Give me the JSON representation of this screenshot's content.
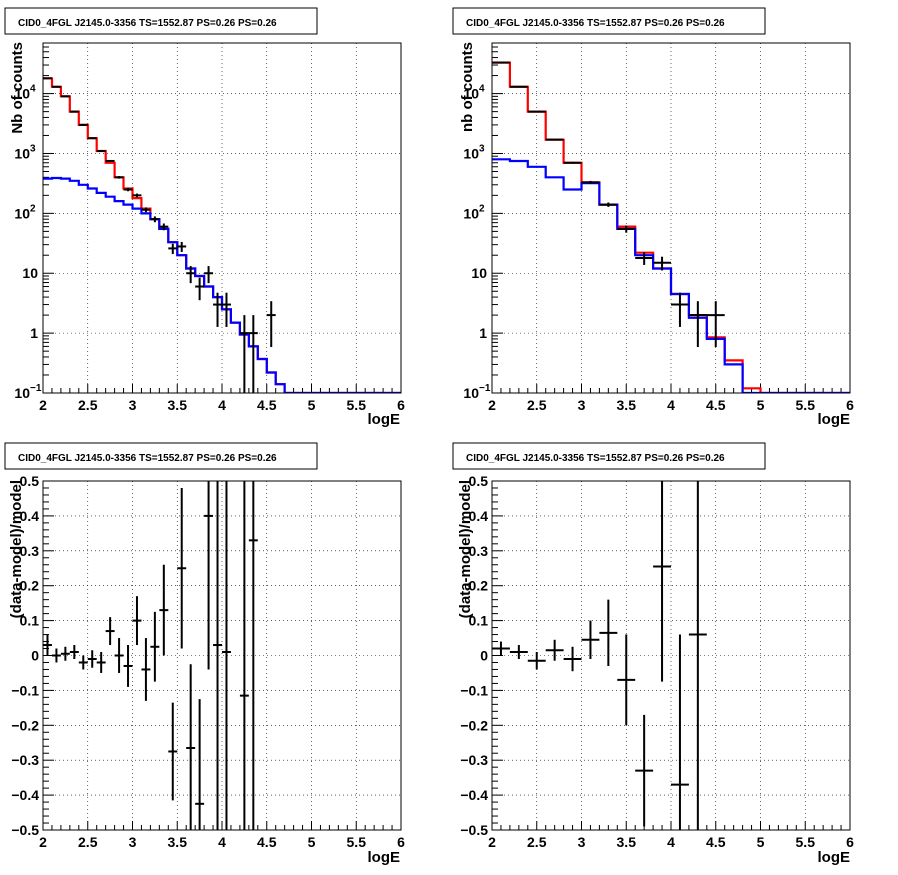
{
  "panels": [
    {
      "title": "CID0_4FGL J2145.0-3356 TS=1552.87 PS=0.26 PS=0.26",
      "chart_data": {
        "type": "line",
        "xlabel": "logE",
        "ylabel": "Nb of counts",
        "xlim": [
          2,
          6
        ],
        "ylim": [
          0.1,
          70000
        ],
        "yscale": "log",
        "grid": true,
        "xticks": [
          "2",
          "2.5",
          "3",
          "3.5",
          "4",
          "4.5",
          "5",
          "5.5",
          "6"
        ],
        "yticks": [
          {
            "v": 0.1,
            "mant": "10",
            "exp": "−1"
          },
          {
            "v": 1,
            "mant": "1",
            "exp": ""
          },
          {
            "v": 10,
            "mant": "10",
            "exp": ""
          },
          {
            "v": 100,
            "mant": "10",
            "exp": "2"
          },
          {
            "v": 1000,
            "mant": "10",
            "exp": "3"
          },
          {
            "v": 10000,
            "mant": "10",
            "exp": "4"
          }
        ],
        "binwidth": 0.1,
        "series": [
          {
            "color": "#ff0000",
            "x0": 2.0,
            "values": [
              18000,
              13000,
              9000,
              5000,
              3000,
              1800,
              1100,
              700,
              400,
              260,
              180,
              120,
              80,
              55,
              33,
              20,
              12,
              9,
              6,
              4,
              2.5,
              1.5,
              0.95,
              0.6,
              0.37,
              0.22,
              0.14,
              0.1,
              0.1,
              0.1,
              0.1,
              0.1,
              0.1,
              0.1,
              0.1,
              0.1,
              0.1,
              0.1,
              0.1,
              0.1
            ]
          },
          {
            "color": "#0000ff",
            "x0": 2.0,
            "values": [
              380,
              390,
              380,
              350,
              300,
              260,
              220,
              190,
              160,
              140,
              120,
              100,
              80,
              55,
              33,
              20,
              12,
              9,
              6,
              4,
              2.5,
              1.5,
              0.95,
              0.6,
              0.37,
              0.22,
              0.14,
              0.1,
              0.1,
              0.1,
              0.1,
              0.1,
              0.1,
              0.1,
              0.1,
              0.1,
              0.1,
              0.1,
              0.1,
              0.1
            ]
          }
        ],
        "points": [
          {
            "x": 2.05,
            "y": 18000
          },
          {
            "x": 2.15,
            "y": 13000
          },
          {
            "x": 2.25,
            "y": 9000
          },
          {
            "x": 2.35,
            "y": 5000
          },
          {
            "x": 2.45,
            "y": 3000
          },
          {
            "x": 2.55,
            "y": 1800
          },
          {
            "x": 2.65,
            "y": 1100
          },
          {
            "x": 2.75,
            "y": 750
          },
          {
            "x": 2.85,
            "y": 400
          },
          {
            "x": 2.95,
            "y": 250
          },
          {
            "x": 3.05,
            "y": 200
          },
          {
            "x": 3.15,
            "y": 115
          },
          {
            "x": 3.25,
            "y": 80
          },
          {
            "x": 3.35,
            "y": 60
          },
          {
            "x": 3.45,
            "y": 26
          },
          {
            "x": 3.55,
            "y": 28
          },
          {
            "x": 3.65,
            "y": 10
          },
          {
            "x": 3.75,
            "y": 6
          },
          {
            "x": 3.85,
            "y": 10
          },
          {
            "x": 3.95,
            "y": 3
          },
          {
            "x": 4.05,
            "y": 3
          },
          {
            "x": 4.25,
            "y": 1
          },
          {
            "x": 4.35,
            "y": 1
          },
          {
            "x": 4.55,
            "y": 2
          }
        ]
      }
    },
    {
      "title": "CID0_4FGL J2145.0-3356 TS=1552.87 PS=0.26 PS=0.26",
      "chart_data": {
        "type": "line",
        "xlabel": "logE",
        "ylabel": "nb of counts",
        "xlim": [
          2,
          6
        ],
        "ylim": [
          0.1,
          70000
        ],
        "yscale": "log",
        "grid": true,
        "xticks": [
          "2",
          "2.5",
          "3",
          "3.5",
          "4",
          "4.5",
          "5",
          "5.5",
          "6"
        ],
        "yticks": [
          {
            "v": 0.1,
            "mant": "10",
            "exp": "−1"
          },
          {
            "v": 1,
            "mant": "1",
            "exp": ""
          },
          {
            "v": 10,
            "mant": "10",
            "exp": ""
          },
          {
            "v": 100,
            "mant": "10",
            "exp": "2"
          },
          {
            "v": 1000,
            "mant": "10",
            "exp": "3"
          },
          {
            "v": 10000,
            "mant": "10",
            "exp": "4"
          }
        ],
        "binwidth": 0.2,
        "series": [
          {
            "color": "#ff0000",
            "x0": 2.0,
            "values": [
              33000,
              13000,
              5000,
              1700,
              700,
              330,
              140,
              60,
              22,
              12,
              4.5,
              2.0,
              0.85,
              0.35,
              0.12,
              0.1,
              0.1,
              0.1,
              0.1,
              0.1
            ]
          },
          {
            "color": "#0000ff",
            "x0": 2.0,
            "values": [
              800,
              750,
              600,
              400,
              250,
              320,
              140,
              55,
              20,
              12,
              4.5,
              1.8,
              0.8,
              0.3,
              0.1,
              0.1,
              0.1,
              0.1,
              0.1,
              0.1
            ]
          }
        ],
        "points": [
          {
            "x": 2.1,
            "y": 33000
          },
          {
            "x": 2.3,
            "y": 13000
          },
          {
            "x": 2.5,
            "y": 5000
          },
          {
            "x": 2.7,
            "y": 1700
          },
          {
            "x": 2.9,
            "y": 700
          },
          {
            "x": 3.1,
            "y": 330
          },
          {
            "x": 3.3,
            "y": 140
          },
          {
            "x": 3.5,
            "y": 55
          },
          {
            "x": 3.7,
            "y": 18
          },
          {
            "x": 3.9,
            "y": 15
          },
          {
            "x": 4.1,
            "y": 3
          },
          {
            "x": 4.3,
            "y": 2
          },
          {
            "x": 4.5,
            "y": 2
          }
        ]
      }
    },
    {
      "title": "CID0_4FGL J2145.0-3356 TS=1552.87 PS=0.26 PS=0.26",
      "chart_data": {
        "type": "scatter",
        "xlabel": "logE",
        "ylabel": "(data-model)/model",
        "xlim": [
          2,
          6
        ],
        "ylim": [
          -0.5,
          0.5
        ],
        "grid": true,
        "xticks": [
          "2",
          "2.5",
          "3",
          "3.5",
          "4",
          "4.5",
          "5",
          "5.5",
          "6"
        ],
        "yticks": [
          "−0.5",
          "−0.4",
          "−0.3",
          "−0.2",
          "−0.1",
          "0",
          "0.1",
          "0.2",
          "0.3",
          "0.4",
          "0.5"
        ],
        "yticks_values": [
          -0.5,
          -0.4,
          -0.3,
          -0.2,
          -0.1,
          0,
          0.1,
          0.2,
          0.3,
          0.4,
          0.5
        ],
        "xerr": 0.05,
        "points": [
          {
            "x": 2.05,
            "y": 0.03,
            "e": 0.03
          },
          {
            "x": 2.15,
            "y": 0.0,
            "e": 0.02
          },
          {
            "x": 2.25,
            "y": 0.005,
            "e": 0.02
          },
          {
            "x": 2.35,
            "y": 0.01,
            "e": 0.02
          },
          {
            "x": 2.45,
            "y": -0.02,
            "e": 0.02
          },
          {
            "x": 2.55,
            "y": -0.01,
            "e": 0.025
          },
          {
            "x": 2.65,
            "y": -0.02,
            "e": 0.03
          },
          {
            "x": 2.75,
            "y": 0.07,
            "e": 0.04
          },
          {
            "x": 2.85,
            "y": 0.0,
            "e": 0.05
          },
          {
            "x": 2.95,
            "y": -0.03,
            "e": 0.06
          },
          {
            "x": 3.05,
            "y": 0.1,
            "e": 0.07
          },
          {
            "x": 3.15,
            "y": -0.04,
            "e": 0.09
          },
          {
            "x": 3.25,
            "y": 0.025,
            "e": 0.1
          },
          {
            "x": 3.35,
            "y": 0.13,
            "e": 0.13
          },
          {
            "x": 3.45,
            "y": -0.275,
            "e": 0.14
          },
          {
            "x": 3.55,
            "y": 0.25,
            "e": 0.23
          },
          {
            "x": 3.65,
            "y": -0.265,
            "e": 0.24
          },
          {
            "x": 3.75,
            "y": -0.425,
            "e": 0.3
          },
          {
            "x": 3.85,
            "y": 0.4,
            "e": 0.44
          },
          {
            "x": 3.95,
            "y": 0.03,
            "e": 0.55
          },
          {
            "x": 4.05,
            "y": 0.01,
            "e": 0.55
          },
          {
            "x": 4.25,
            "y": -0.115,
            "e": 1.0
          },
          {
            "x": 4.35,
            "y": 0.33,
            "e": 1.0
          }
        ]
      }
    },
    {
      "title": "CID0_4FGL J2145.0-3356 TS=1552.87 PS=0.26 PS=0.26",
      "chart_data": {
        "type": "scatter",
        "xlabel": "logE",
        "ylabel": "(data-model)/model",
        "xlim": [
          2,
          6
        ],
        "ylim": [
          -0.5,
          0.5
        ],
        "grid": true,
        "xticks": [
          "2",
          "2.5",
          "3",
          "3.5",
          "4",
          "4.5",
          "5",
          "5.5",
          "6"
        ],
        "yticks": [
          "−0.5",
          "−0.4",
          "−0.3",
          "−0.2",
          "−0.1",
          "0",
          "0.1",
          "0.2",
          "0.3",
          "0.4",
          "0.5"
        ],
        "yticks_values": [
          -0.5,
          -0.4,
          -0.3,
          -0.2,
          -0.1,
          0,
          0.1,
          0.2,
          0.3,
          0.4,
          0.5
        ],
        "xerr": 0.1,
        "points": [
          {
            "x": 2.1,
            "y": 0.02,
            "e": 0.02
          },
          {
            "x": 2.3,
            "y": 0.01,
            "e": 0.02
          },
          {
            "x": 2.5,
            "y": -0.015,
            "e": 0.025
          },
          {
            "x": 2.7,
            "y": 0.015,
            "e": 0.03
          },
          {
            "x": 2.9,
            "y": -0.01,
            "e": 0.035
          },
          {
            "x": 3.1,
            "y": 0.045,
            "e": 0.055
          },
          {
            "x": 3.3,
            "y": 0.065,
            "e": 0.095
          },
          {
            "x": 3.5,
            "y": -0.07,
            "e": 0.13
          },
          {
            "x": 3.7,
            "y": -0.33,
            "e": 0.16
          },
          {
            "x": 3.9,
            "y": 0.255,
            "e": 0.33
          },
          {
            "x": 4.1,
            "y": -0.37,
            "e": 0.43
          },
          {
            "x": 4.3,
            "y": 0.06,
            "e": 1.0
          }
        ]
      }
    }
  ]
}
